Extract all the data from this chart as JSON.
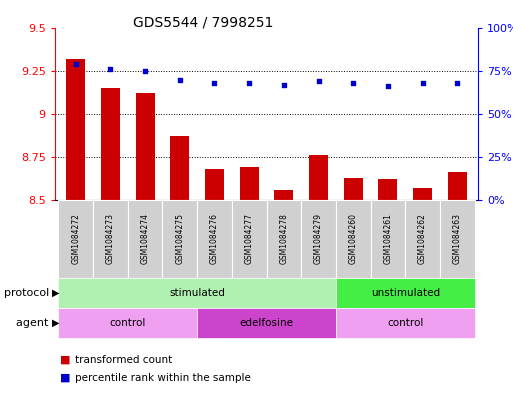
{
  "title": "GDS5544 / 7998251",
  "samples": [
    "GSM1084272",
    "GSM1084273",
    "GSM1084274",
    "GSM1084275",
    "GSM1084276",
    "GSM1084277",
    "GSM1084278",
    "GSM1084279",
    "GSM1084260",
    "GSM1084261",
    "GSM1084262",
    "GSM1084263"
  ],
  "transformed_count": [
    9.32,
    9.15,
    9.12,
    8.87,
    8.68,
    8.69,
    8.56,
    8.76,
    8.63,
    8.62,
    8.57,
    8.66
  ],
  "percentile_rank": [
    79,
    76,
    75,
    70,
    68,
    68,
    67,
    69,
    68,
    66,
    68,
    68
  ],
  "ylim_left": [
    8.5,
    9.5
  ],
  "ylim_right": [
    0,
    100
  ],
  "yticks_left": [
    8.5,
    8.75,
    9.0,
    9.25,
    9.5
  ],
  "yticks_right": [
    0,
    25,
    50,
    75,
    100
  ],
  "ytick_labels_left": [
    "8.5",
    "8.75",
    "9",
    "9.25",
    "9.5"
  ],
  "ytick_labels_right": [
    "0%",
    "25%",
    "50%",
    "75%",
    "100%"
  ],
  "bar_color": "#cc0000",
  "dot_color": "#0000cc",
  "protocol_labels": [
    {
      "text": "stimulated",
      "start": 0,
      "end": 8,
      "color": "#b0f0b0"
    },
    {
      "text": "unstimulated",
      "start": 8,
      "end": 12,
      "color": "#44ee44"
    }
  ],
  "agent_labels": [
    {
      "text": "control",
      "start": 0,
      "end": 4,
      "color": "#f0a0f0"
    },
    {
      "text": "edelfosine",
      "start": 4,
      "end": 8,
      "color": "#cc44cc"
    },
    {
      "text": "control",
      "start": 8,
      "end": 12,
      "color": "#f0a0f0"
    }
  ],
  "legend_bar_label": "transformed count",
  "legend_dot_label": "percentile rank within the sample",
  "protocol_label": "protocol",
  "agent_label": "agent"
}
